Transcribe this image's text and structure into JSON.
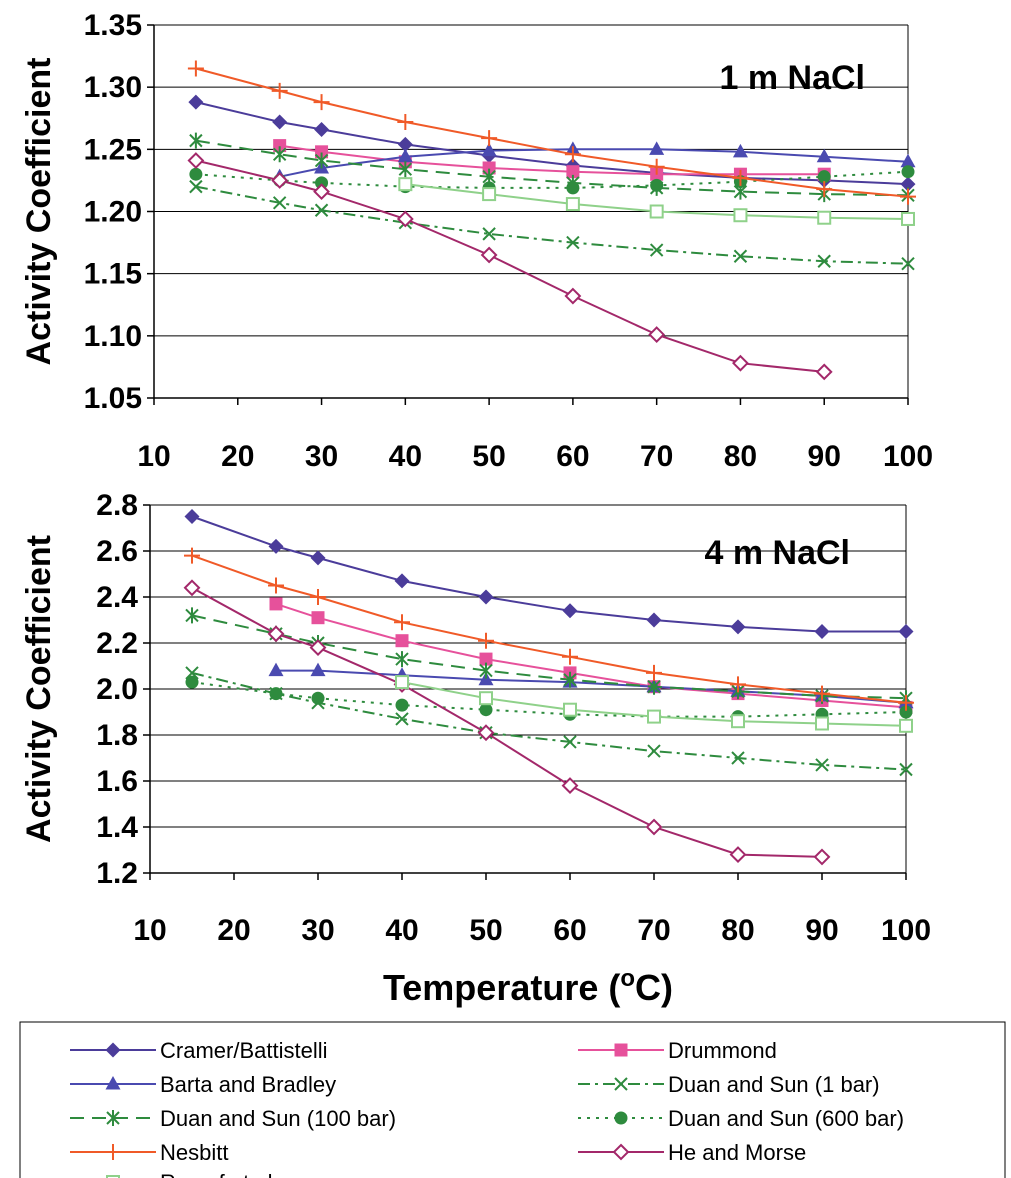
{
  "chart_data": [
    {
      "type": "line",
      "title": "1 m NaCl",
      "ylabel": "Activity Coefficient",
      "xlabel": "",
      "xlim": [
        10,
        100
      ],
      "ylim": [
        1.05,
        1.35
      ],
      "xticks": [
        "10",
        "20",
        "30",
        "40",
        "50",
        "60",
        "70",
        "80",
        "90",
        "100"
      ],
      "yticks": [
        "1.05",
        "1.10",
        "1.15",
        "1.20",
        "1.25",
        "1.30",
        "1.35"
      ],
      "grid": "horizontal",
      "series": [
        {
          "name": "Cramer/Battistelli",
          "color": "#4b3c9a",
          "dash": "solid",
          "marker": "diamond",
          "x": [
            15,
            25,
            30,
            40,
            50,
            60,
            70,
            80,
            90,
            100
          ],
          "y": [
            1.288,
            1.272,
            1.266,
            1.254,
            1.245,
            1.237,
            1.231,
            1.227,
            1.225,
            1.222
          ]
        },
        {
          "name": "Drummond",
          "color": "#e6519b",
          "dash": "solid",
          "marker": "square",
          "x": [
            25,
            30,
            40,
            50,
            60,
            70,
            80,
            90
          ],
          "y": [
            1.253,
            1.248,
            1.24,
            1.235,
            1.232,
            1.23,
            1.23,
            1.23
          ]
        },
        {
          "name": "Barta and Bradley",
          "color": "#4a4ab0",
          "dash": "solid",
          "marker": "triangle",
          "x": [
            25,
            30,
            40,
            50,
            60,
            70,
            80,
            90,
            100
          ],
          "y": [
            1.228,
            1.235,
            1.244,
            1.249,
            1.25,
            1.25,
            1.248,
            1.244,
            1.24
          ]
        },
        {
          "name": "Duan and Sun (1 bar)",
          "color": "#2e8b3e",
          "dash": "dashdot",
          "marker": "x",
          "x": [
            15,
            25,
            30,
            40,
            50,
            60,
            70,
            80,
            90,
            100
          ],
          "y": [
            1.22,
            1.207,
            1.201,
            1.191,
            1.182,
            1.175,
            1.169,
            1.164,
            1.16,
            1.158
          ]
        },
        {
          "name": "Duan and Sun (100 bar)",
          "color": "#2e8b3e",
          "dash": "longdash",
          "marker": "star",
          "x": [
            15,
            25,
            30,
            40,
            50,
            60,
            70,
            80,
            90,
            100
          ],
          "y": [
            1.257,
            1.246,
            1.241,
            1.234,
            1.228,
            1.223,
            1.219,
            1.216,
            1.214,
            1.213
          ]
        },
        {
          "name": "Duan and Sun (600 bar)",
          "color": "#2e8b3e",
          "dash": "dot",
          "marker": "circle",
          "x": [
            15,
            25,
            30,
            40,
            50,
            60,
            70,
            80,
            90,
            100
          ],
          "y": [
            1.23,
            1.225,
            1.223,
            1.22,
            1.219,
            1.219,
            1.221,
            1.224,
            1.228,
            1.232
          ]
        },
        {
          "name": "Nesbitt",
          "color": "#f05a28",
          "dash": "solid",
          "marker": "plus",
          "x": [
            15,
            25,
            30,
            40,
            50,
            60,
            70,
            80,
            90,
            100
          ],
          "y": [
            1.315,
            1.297,
            1.288,
            1.272,
            1.259,
            1.246,
            1.236,
            1.227,
            1.218,
            1.212
          ]
        },
        {
          "name": "He and Morse",
          "color": "#a3286a",
          "dash": "solid",
          "marker": "opendiamond",
          "x": [
            15,
            25,
            30,
            40,
            50,
            60,
            70,
            80,
            90
          ],
          "y": [
            1.241,
            1.225,
            1.216,
            1.194,
            1.165,
            1.132,
            1.101,
            1.078,
            1.071
          ]
        },
        {
          "name": "Rumpf et al.",
          "color": "#8fd18a",
          "dash": "solid",
          "marker": "opensquare",
          "x": [
            40,
            50,
            60,
            70,
            80,
            90,
            100
          ],
          "y": [
            1.222,
            1.214,
            1.206,
            1.2,
            1.197,
            1.195,
            1.194
          ]
        }
      ]
    },
    {
      "type": "line",
      "title": "4 m NaCl",
      "ylabel": "Activity Coefficient",
      "xlabel": "Temperature (°C)",
      "xlim": [
        10,
        100
      ],
      "ylim": [
        1.2,
        2.8
      ],
      "xticks": [
        "10",
        "20",
        "30",
        "40",
        "50",
        "60",
        "70",
        "80",
        "90",
        "100"
      ],
      "yticks": [
        "1.2",
        "1.4",
        "1.6",
        "1.8",
        "2.0",
        "2.2",
        "2.4",
        "2.6",
        "2.8"
      ],
      "grid": "horizontal",
      "series": [
        {
          "name": "Cramer/Battistelli",
          "color": "#4b3c9a",
          "dash": "solid",
          "marker": "diamond",
          "x": [
            15,
            25,
            30,
            40,
            50,
            60,
            70,
            80,
            90,
            100
          ],
          "y": [
            2.75,
            2.62,
            2.57,
            2.47,
            2.4,
            2.34,
            2.3,
            2.27,
            2.25,
            2.25
          ]
        },
        {
          "name": "Drummond",
          "color": "#e6519b",
          "dash": "solid",
          "marker": "square",
          "x": [
            25,
            30,
            40,
            50,
            60,
            70,
            80,
            90,
            100
          ],
          "y": [
            2.37,
            2.31,
            2.21,
            2.13,
            2.07,
            2.01,
            1.98,
            1.95,
            1.92
          ]
        },
        {
          "name": "Barta and Bradley",
          "color": "#4a4ab0",
          "dash": "solid",
          "marker": "triangle",
          "x": [
            25,
            30,
            40,
            50,
            60,
            70,
            80,
            90,
            100
          ],
          "y": [
            2.08,
            2.08,
            2.06,
            2.04,
            2.03,
            2.01,
            1.99,
            1.97,
            1.94
          ]
        },
        {
          "name": "Duan and Sun (1 bar)",
          "color": "#2e8b3e",
          "dash": "dashdot",
          "marker": "x",
          "x": [
            15,
            25,
            30,
            40,
            50,
            60,
            70,
            80,
            90,
            100
          ],
          "y": [
            2.07,
            1.98,
            1.94,
            1.87,
            1.81,
            1.77,
            1.73,
            1.7,
            1.67,
            1.65
          ]
        },
        {
          "name": "Duan and Sun (100 bar)",
          "color": "#2e8b3e",
          "dash": "longdash",
          "marker": "star",
          "x": [
            15,
            25,
            30,
            40,
            50,
            60,
            70,
            80,
            90,
            100
          ],
          "y": [
            2.32,
            2.24,
            2.2,
            2.13,
            2.08,
            2.04,
            2.01,
            1.99,
            1.97,
            1.96
          ]
        },
        {
          "name": "Duan and Sun (600 bar)",
          "color": "#2e8b3e",
          "dash": "dot",
          "marker": "circle",
          "x": [
            15,
            25,
            30,
            40,
            50,
            60,
            70,
            80,
            90,
            100
          ],
          "y": [
            2.03,
            1.98,
            1.96,
            1.93,
            1.91,
            1.89,
            1.88,
            1.88,
            1.89,
            1.9
          ]
        },
        {
          "name": "Nesbitt",
          "color": "#f05a28",
          "dash": "solid",
          "marker": "plus",
          "x": [
            15,
            25,
            30,
            40,
            50,
            60,
            70,
            80,
            90,
            100
          ],
          "y": [
            2.58,
            2.45,
            2.4,
            2.29,
            2.21,
            2.14,
            2.07,
            2.02,
            1.98,
            1.94
          ]
        },
        {
          "name": "He and Morse",
          "color": "#a3286a",
          "dash": "solid",
          "marker": "opendiamond",
          "x": [
            15,
            25,
            30,
            40,
            50,
            60,
            70,
            80,
            90
          ],
          "y": [
            2.44,
            2.24,
            2.18,
            2.02,
            1.81,
            1.58,
            1.4,
            1.28,
            1.27
          ]
        },
        {
          "name": "Rumpf et al.",
          "color": "#8fd18a",
          "dash": "solid",
          "marker": "opensquare",
          "x": [
            40,
            50,
            60,
            70,
            80,
            90,
            100
          ],
          "y": [
            2.03,
            1.96,
            1.91,
            1.88,
            1.86,
            1.85,
            1.84
          ]
        }
      ]
    }
  ],
  "legend": {
    "placement": "bottom",
    "order": [
      "Cramer/Battistelli",
      "Drummond",
      "Barta and Bradley",
      "Duan and Sun (1 bar)",
      "Duan and Sun (100 bar)",
      "Duan and Sun (600 bar)",
      "Nesbitt",
      "He and Morse",
      "Rumpf et al."
    ]
  }
}
